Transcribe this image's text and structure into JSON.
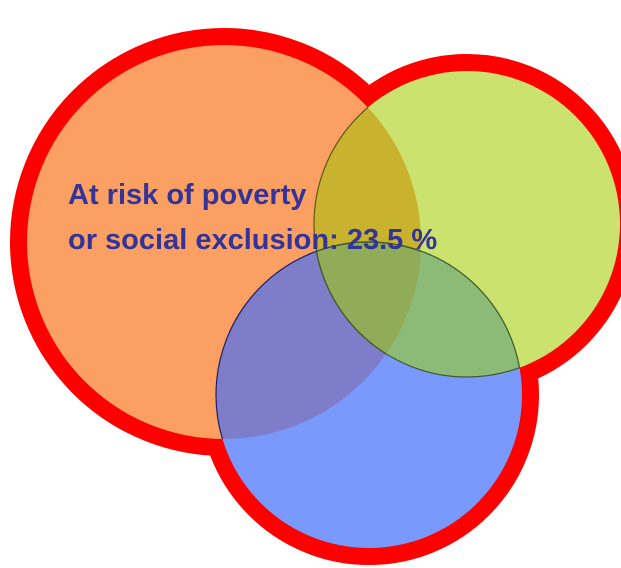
{
  "label": {
    "line_1": "At risk of poverty",
    "line_2": "or social exclusion: 23.5 %"
  },
  "colors": {
    "outline": "#ff0000",
    "set_a_fill": "#fb9f63",
    "set_b_fill": "#cbe26f",
    "set_c_fill": "#7a99fd",
    "overlap_ab": "#c9b22d",
    "overlap_ac": "#7e7dc9",
    "overlap_bc": "#8cbb78",
    "overlap_abc": "#90ac58",
    "text": "#333399"
  }
}
